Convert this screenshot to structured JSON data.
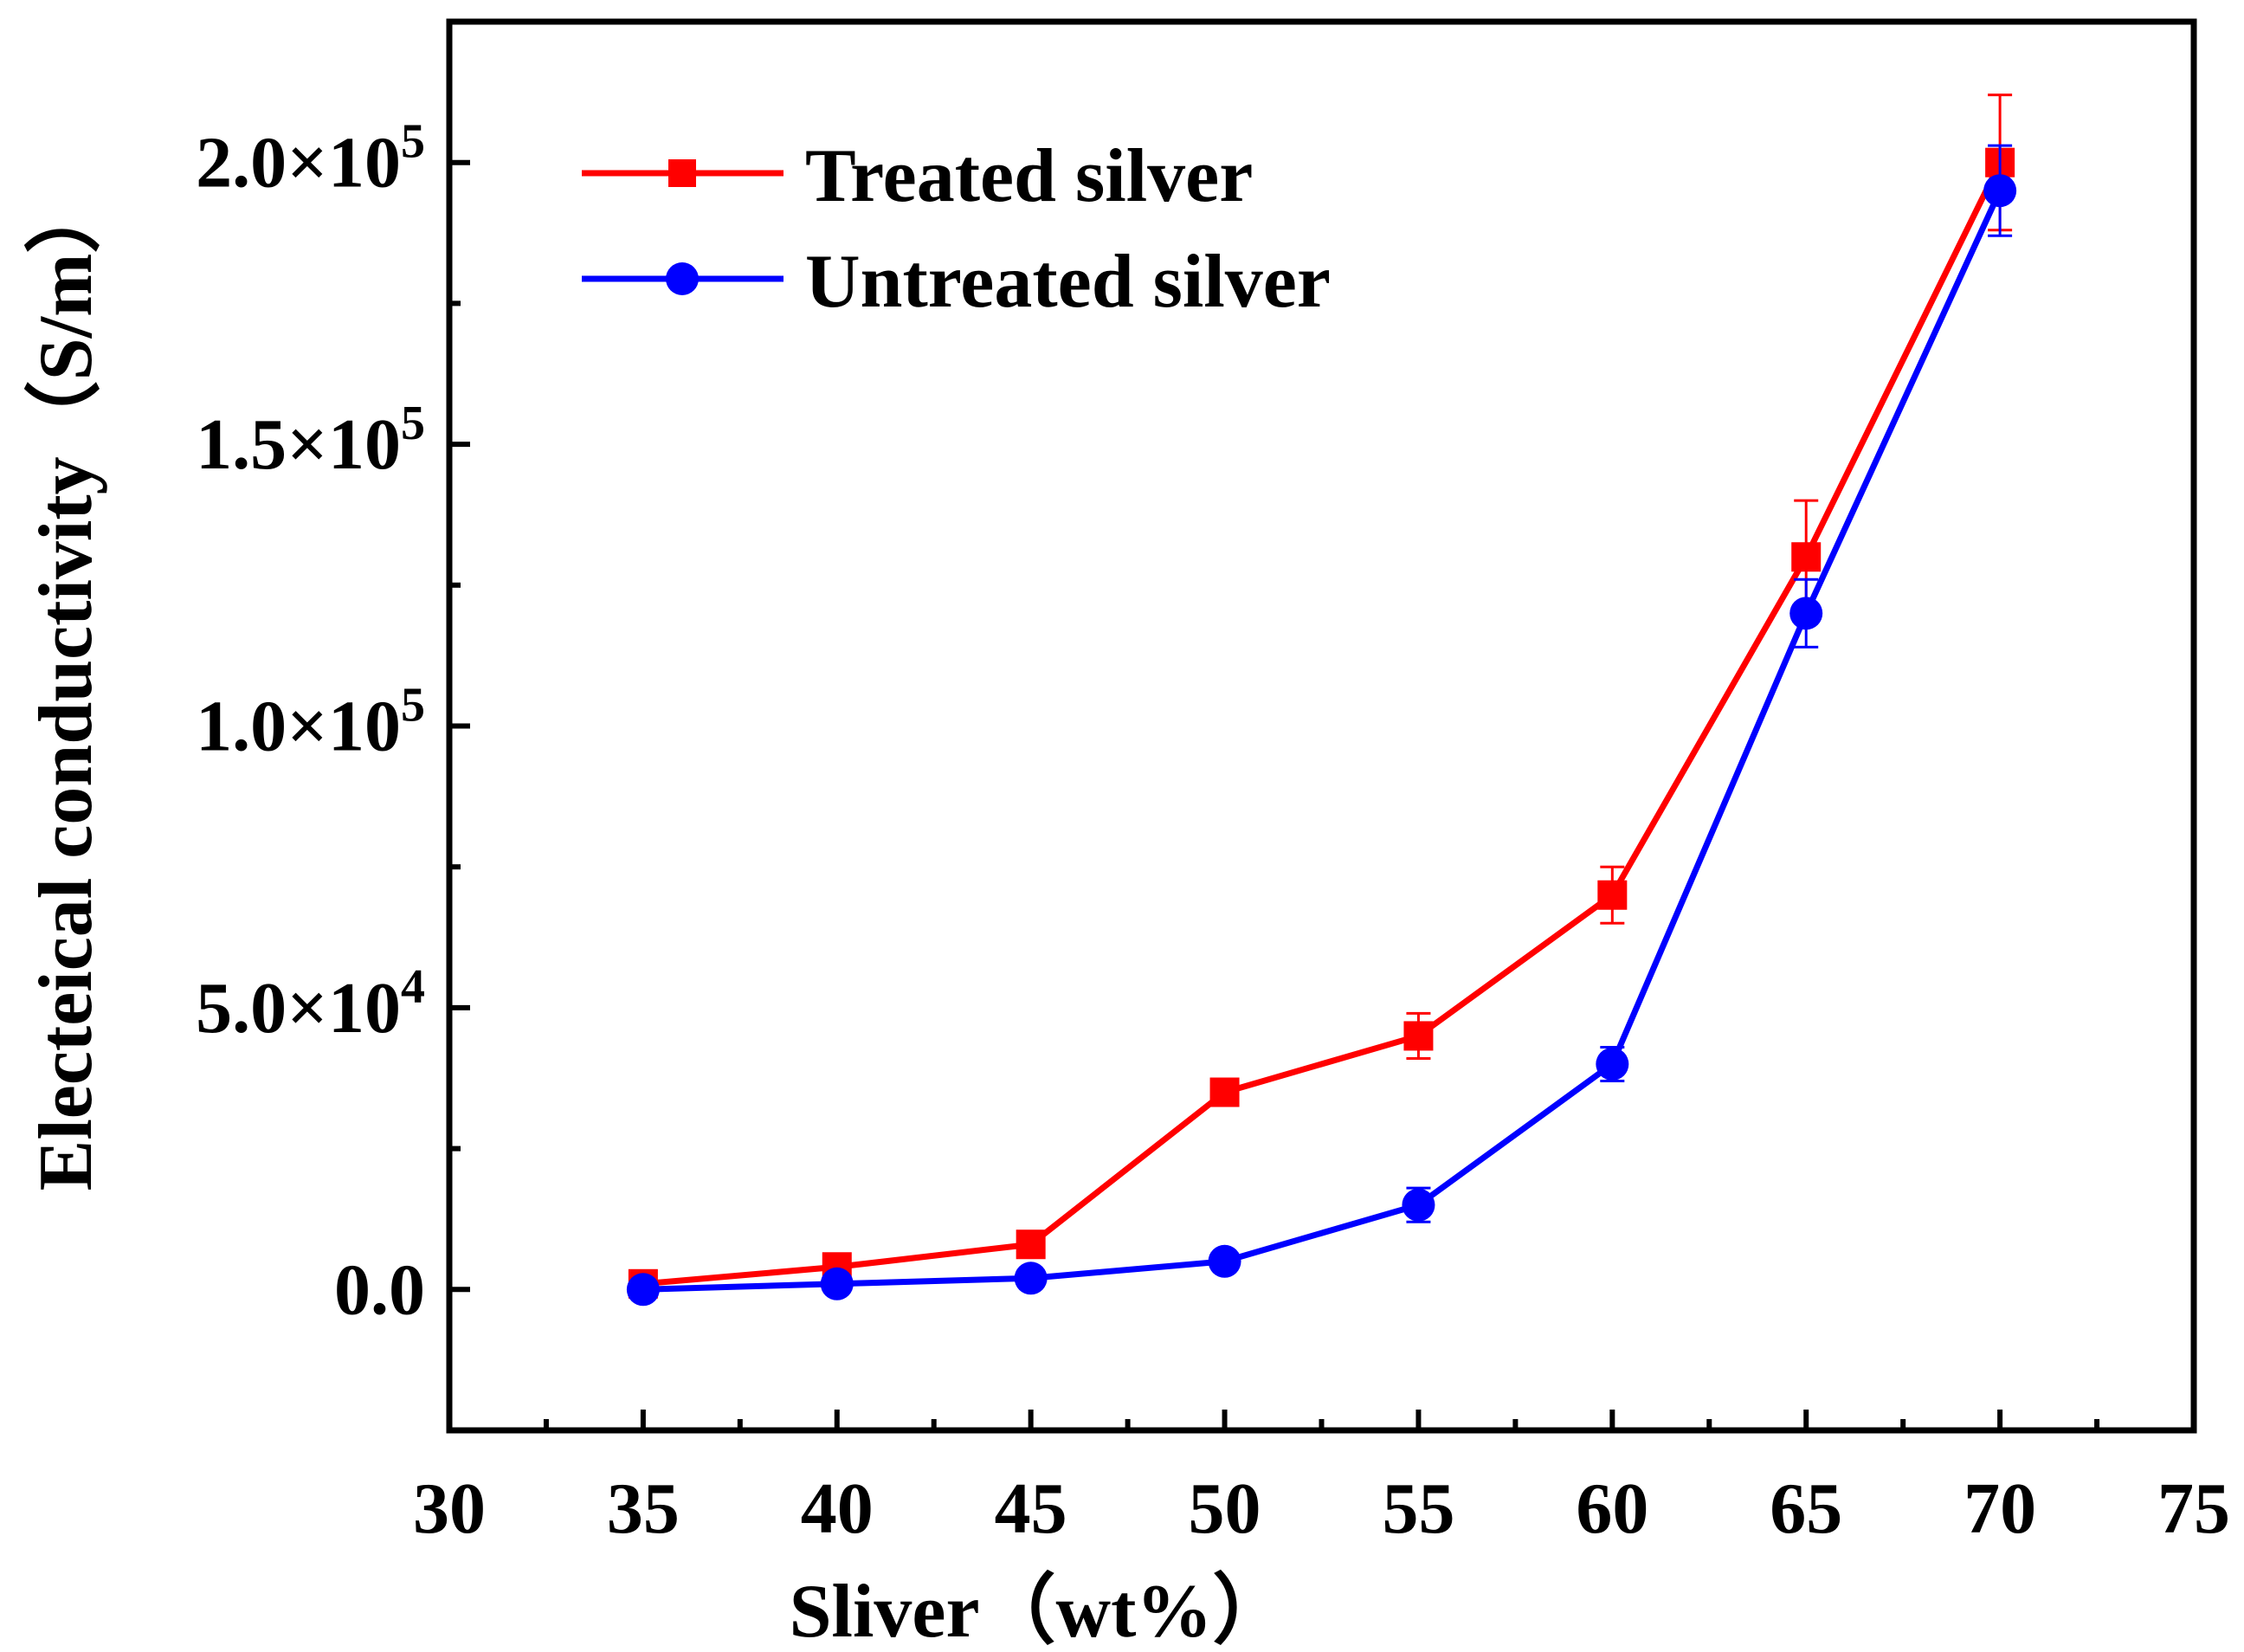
{
  "chart_data": {
    "type": "line",
    "title": "",
    "xlabel": "Sliver（wt%）",
    "ylabel": "Electeical conductivity（S/m）",
    "xlim": [
      30,
      75
    ],
    "ylim": [
      -25000,
      225000
    ],
    "grid": false,
    "legend_position": "top-left",
    "x_ticks": [
      {
        "value": 30,
        "label": "30"
      },
      {
        "value": 35,
        "label": "35"
      },
      {
        "value": 40,
        "label": "40"
      },
      {
        "value": 45,
        "label": "45"
      },
      {
        "value": 50,
        "label": "50"
      },
      {
        "value": 55,
        "label": "55"
      },
      {
        "value": 60,
        "label": "60"
      },
      {
        "value": 65,
        "label": "65"
      },
      {
        "value": 70,
        "label": "70"
      },
      {
        "value": 75,
        "label": "75"
      }
    ],
    "y_ticks": [
      {
        "value": 0,
        "mantissa": "0.0",
        "exponent": ""
      },
      {
        "value": 50000,
        "mantissa": "5.0×10",
        "exponent": "4"
      },
      {
        "value": 100000,
        "mantissa": "1.0×10",
        "exponent": "5"
      },
      {
        "value": 150000,
        "mantissa": "1.5×10",
        "exponent": "5"
      },
      {
        "value": 200000,
        "mantissa": "2.0×10",
        "exponent": "5"
      }
    ],
    "x_minor_step": 2.5,
    "y_minor_step": 25000,
    "x": [
      35,
      40,
      45,
      50,
      55,
      60,
      65,
      70
    ],
    "series": [
      {
        "name": "Treated silver",
        "color": "#ff0000",
        "marker": "square",
        "values": [
          1000,
          4000,
          8000,
          35000,
          45000,
          70000,
          130000,
          200000
        ],
        "errors": [
          600,
          800,
          1200,
          1500,
          4000,
          5000,
          10000,
          12000
        ]
      },
      {
        "name": "Untreated silver",
        "color": "#0000ff",
        "marker": "circle",
        "values": [
          0,
          1000,
          2000,
          5000,
          15000,
          40000,
          120000,
          195000
        ],
        "errors": [
          200,
          300,
          500,
          800,
          3000,
          3000,
          6000,
          8000
        ]
      }
    ]
  }
}
